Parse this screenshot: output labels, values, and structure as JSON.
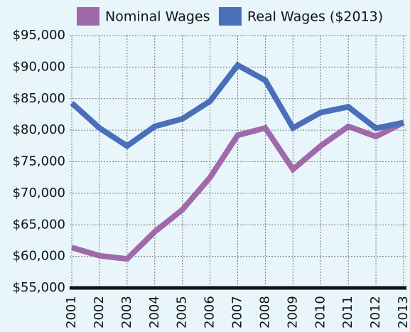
{
  "chart_data": {
    "type": "line",
    "categories": [
      "2001",
      "2002",
      "2003",
      "2004",
      "2005",
      "2006",
      "2007",
      "2008",
      "2009",
      "2010",
      "2011",
      "2012",
      "2013"
    ],
    "series": [
      {
        "name": "Nominal Wages",
        "color": "#a06aaa",
        "values": [
          61400,
          60100,
          59600,
          63900,
          67400,
          72500,
          79200,
          80350,
          73800,
          77500,
          80600,
          79000,
          81200
        ]
      },
      {
        "name": "Real Wages ($2013)",
        "color": "#4a6fb8",
        "values": [
          84300,
          80350,
          77500,
          80600,
          81800,
          84600,
          90300,
          87900,
          80350,
          82800,
          83700,
          80300,
          81200
        ]
      }
    ],
    "ylim": [
      55000,
      95000
    ],
    "yticks": [
      {
        "value": 55000,
        "label": "$55,000"
      },
      {
        "value": 60000,
        "label": "$60,000"
      },
      {
        "value": 65000,
        "label": "$65,000"
      },
      {
        "value": 70000,
        "label": "$70,000"
      },
      {
        "value": 75000,
        "label": "$75,000"
      },
      {
        "value": 80000,
        "label": "$80,000"
      },
      {
        "value": 85000,
        "label": "$85,000"
      },
      {
        "value": 90000,
        "label": "$90,000"
      },
      {
        "value": 95000,
        "label": "$95,000"
      }
    ],
    "grid": true
  }
}
